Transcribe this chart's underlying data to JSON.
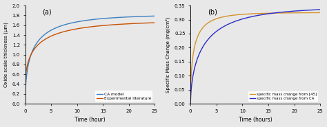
{
  "panel_a": {
    "label": "(a)",
    "xlabel": "Time (hour)",
    "ylabel": "Oxide scale thickness (μm)",
    "xlim": [
      0,
      25
    ],
    "ylim": [
      0,
      2
    ],
    "yticks": [
      0,
      0.2,
      0.4,
      0.6,
      0.8,
      1.0,
      1.2,
      1.4,
      1.6,
      1.8,
      2.0
    ],
    "xticks": [
      0,
      5,
      10,
      15,
      20,
      25
    ],
    "line_CA_color": "#3a7fc1",
    "line_exp_color": "#c85000",
    "legend_labels": [
      "CA model",
      "Experimental literature"
    ]
  },
  "panel_b": {
    "label": "(b)",
    "xlabel": "Time (hours)",
    "ylabel": "Specific Mass Change (mg/cm²)",
    "xlim": [
      0,
      25
    ],
    "ylim": [
      0.0,
      0.35
    ],
    "yticks": [
      0.0,
      0.05,
      0.1,
      0.15,
      0.2,
      0.25,
      0.3,
      0.35
    ],
    "xticks": [
      0,
      5,
      10,
      15,
      20,
      25
    ],
    "line_exp_color": "#d4922a",
    "line_CA_color": "#2a2ac8",
    "legend_labels": [
      "specific mass change from [45]",
      "specific mass change from CA"
    ]
  },
  "background_color": "#e8e8e8"
}
